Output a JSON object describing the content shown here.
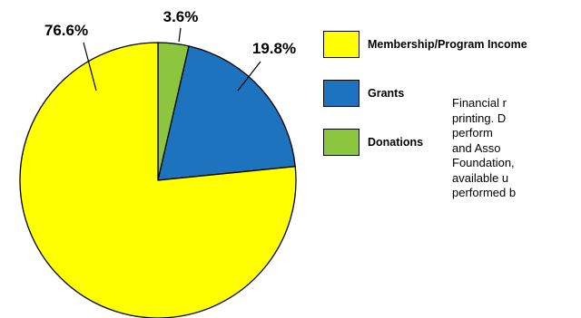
{
  "chart_data": {
    "type": "pie",
    "slices": [
      {
        "label": "Membership/Program Income",
        "value": 76.6,
        "value_label": "76.6%",
        "color": "#ffff00"
      },
      {
        "label": "Grants",
        "value": 19.8,
        "value_label": "19.8%",
        "color": "#1e73be"
      },
      {
        "label": "Donations",
        "value": 3.6,
        "value_label": "3.6%",
        "color": "#8cc63f"
      }
    ],
    "legend_position": "right"
  },
  "note_lines": [
    "Financial r",
    "printing. D",
    "perform",
    "and Asso",
    "Foundation,",
    "available u",
    "performed b"
  ]
}
